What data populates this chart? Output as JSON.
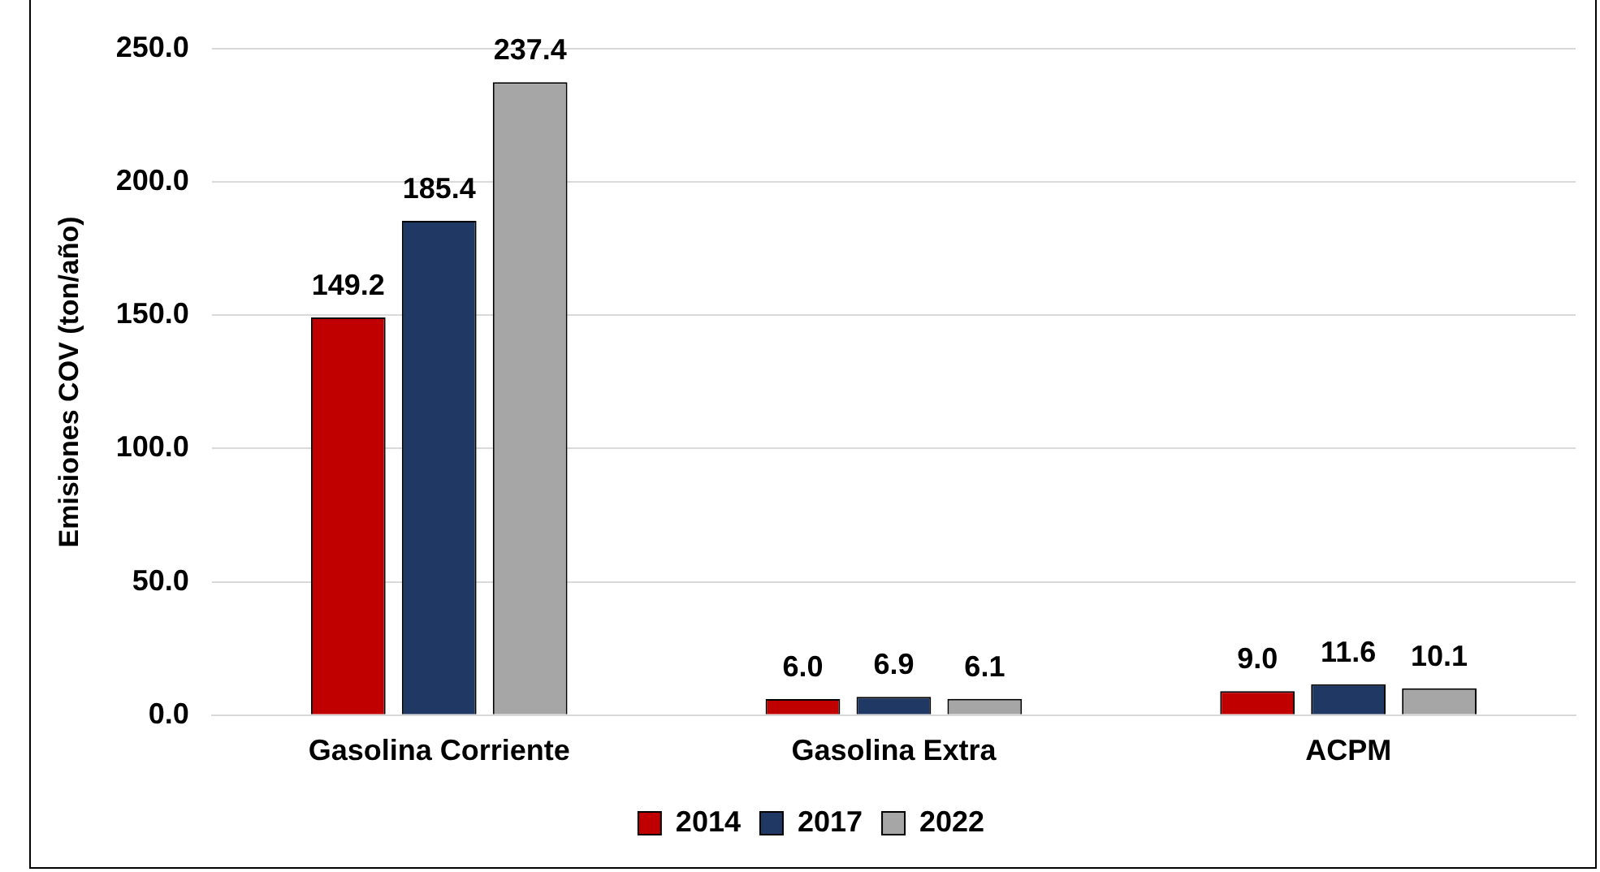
{
  "chart_data": {
    "type": "bar",
    "ylabel": "Emisiones COV (ton/año)",
    "categories": [
      "Gasolina Corriente",
      "Gasolina Extra",
      "ACPM"
    ],
    "series": [
      {
        "name": "2014",
        "color": "#c00000",
        "values": [
          149.2,
          6.0,
          9.0
        ],
        "value_labels": [
          "149.2",
          "6.0",
          "9.0"
        ]
      },
      {
        "name": "2017",
        "color": "#1f3864",
        "values": [
          185.4,
          6.9,
          11.6
        ],
        "value_labels": [
          "185.4",
          "6.9",
          "11.6"
        ]
      },
      {
        "name": "2022",
        "color": "#a6a6a6",
        "values": [
          237.4,
          6.1,
          10.1
        ],
        "value_labels": [
          "237.4",
          "6.1",
          "10.1"
        ]
      }
    ],
    "ylim": [
      0,
      250
    ],
    "yticks": [
      {
        "value": 0,
        "label": "0.0"
      },
      {
        "value": 50,
        "label": "50.0"
      },
      {
        "value": 100,
        "label": "100.0"
      },
      {
        "value": 150,
        "label": "150.0"
      },
      {
        "value": 200,
        "label": "200.0"
      },
      {
        "value": 250,
        "label": "250.0"
      }
    ],
    "grid": "y",
    "legend": "bottom"
  }
}
